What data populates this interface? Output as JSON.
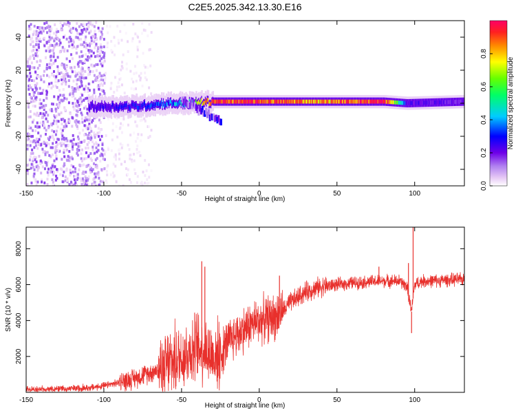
{
  "figure_title": "C2E5.2025.342.13.30.E16",
  "colors": {
    "snr_line": "#e8302c",
    "axes": "#000000",
    "colormap": [
      "#ffffff",
      "#e8ccf5",
      "#a06cf0",
      "#6e00e8",
      "#0000ff",
      "#00ccff",
      "#00ff88",
      "#55ff00",
      "#ffff00",
      "#ff8800",
      "#ff2222",
      "#ff0066"
    ]
  },
  "chart_data": [
    {
      "type": "heatmap",
      "title": "",
      "xlabel": "Height of straight line (km)",
      "ylabel": "Frequency (Hz)",
      "xlim": [
        -150,
        132
      ],
      "ylim": [
        -50,
        50
      ],
      "xticks": [
        -150,
        -100,
        -50,
        0,
        50,
        100
      ],
      "xtick_labels": [
        "-150",
        "-100",
        "-50",
        "0",
        "50",
        "100"
      ],
      "yticks": [
        -40,
        -20,
        0,
        20,
        40
      ],
      "ytick_labels": [
        "-40",
        "-20",
        "0",
        "20",
        "40"
      ],
      "colorbar": {
        "label": "Normalized spectral amplitude",
        "range": [
          0,
          1
        ],
        "ticks": [
          0.0,
          0.2,
          0.4,
          0.6,
          0.8
        ],
        "tick_labels": [
          "0.0",
          "0.2",
          "0.4",
          "0.6",
          "0.8"
        ]
      },
      "features": [
        {
          "name": "broadband noise",
          "x_range": [
            -150,
            -100
          ],
          "freq_range": [
            -50,
            50
          ],
          "amplitude": 0.15
        },
        {
          "name": "sparse noise",
          "x_range": [
            -100,
            -70
          ],
          "freq_range": [
            -50,
            50
          ],
          "amplitude": 0.05
        },
        {
          "name": "main line",
          "x": [
            -110,
            -80,
            -60,
            -45,
            -30,
            0,
            40,
            80,
            95,
            132
          ],
          "freq": [
            -2,
            -2,
            0,
            0,
            1,
            1,
            1,
            1,
            0,
            1
          ],
          "amplitude": [
            0.3,
            0.35,
            0.4,
            0.5,
            0.9,
            0.9,
            0.8,
            0.95,
            0.3,
            0.25
          ]
        },
        {
          "name": "drift branch",
          "x": [
            -50,
            -35,
            -25
          ],
          "freq": [
            2,
            -6,
            -12
          ],
          "amplitude": 0.25
        }
      ]
    },
    {
      "type": "line",
      "title": "",
      "xlabel": "Height of straight line (km)",
      "ylabel": "SNR (10 * v/v)",
      "xlim": [
        -150,
        132
      ],
      "ylim": [
        0,
        9200
      ],
      "xticks": [
        -150,
        -100,
        -50,
        0,
        50,
        100
      ],
      "xtick_labels": [
        "-150",
        "-100",
        "-50",
        "0",
        "50",
        "100"
      ],
      "yticks": [
        2000,
        4000,
        6000,
        8000
      ],
      "ytick_labels": [
        "2000",
        "4000",
        "6000",
        "8000"
      ],
      "series": [
        {
          "name": "SNR",
          "x": [
            -150,
            -130,
            -110,
            -100,
            -90,
            -80,
            -70,
            -60,
            -50,
            -45,
            -40,
            -35,
            -30,
            -25,
            -20,
            -15,
            -10,
            -5,
            0,
            5,
            10,
            15,
            20,
            25,
            30,
            40,
            50,
            60,
            70,
            80,
            90,
            95,
            98,
            100,
            102,
            105,
            110,
            120,
            132
          ],
          "y": [
            150,
            180,
            250,
            350,
            550,
            800,
            1100,
            1500,
            2000,
            2300,
            2500,
            2400,
            2000,
            2100,
            2800,
            3200,
            3500,
            3800,
            4000,
            4100,
            4200,
            4500,
            5000,
            5300,
            5600,
            5900,
            6000,
            6100,
            6150,
            6200,
            6200,
            5900,
            4500,
            6000,
            6100,
            6200,
            6200,
            6250,
            6300
          ]
        }
      ],
      "spikes": [
        {
          "x": -37,
          "y": 7300
        },
        {
          "x": -35,
          "y": 7000
        },
        {
          "x": 13,
          "y": 6500
        },
        {
          "x": 77,
          "y": 7000
        },
        {
          "x": 98,
          "y": 3300
        },
        {
          "x": 99,
          "y": 9200
        },
        {
          "x": 96,
          "y": 7200
        }
      ]
    }
  ]
}
